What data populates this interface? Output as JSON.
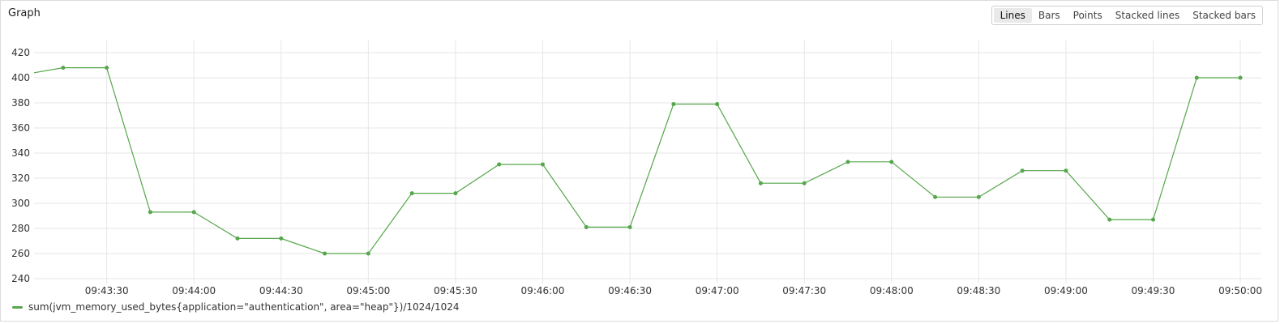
{
  "panel": {
    "title": "Graph"
  },
  "mode_toggle": {
    "options": [
      "Lines",
      "Bars",
      "Points",
      "Stacked lines",
      "Stacked bars"
    ],
    "selected": "Lines"
  },
  "colors": {
    "series": "#56a64b",
    "grid": "#e6e6e6",
    "axis_text": "#333333"
  },
  "chart_data": {
    "type": "line",
    "title": "",
    "xlabel": "",
    "ylabel": "",
    "ylim": [
      240,
      420
    ],
    "y_ticks": [
      240,
      260,
      280,
      300,
      320,
      340,
      360,
      380,
      400,
      420
    ],
    "xlim": [
      "09:43:05",
      "09:50:05"
    ],
    "x_ticks": [
      "09:43:30",
      "09:44:00",
      "09:44:30",
      "09:45:00",
      "09:45:30",
      "09:46:00",
      "09:46:30",
      "09:47:00",
      "09:47:30",
      "09:48:00",
      "09:48:30",
      "09:49:00",
      "09:49:30",
      "09:50:00"
    ],
    "grid": true,
    "legend_position": "bottom-left",
    "series": [
      {
        "name": "sum(jvm_memory_used_bytes{application=\"authentication\", area=\"heap\"})/1024/1024",
        "x": [
          "09:43:05",
          "09:43:15",
          "09:43:30",
          "09:43:45",
          "09:44:00",
          "09:44:15",
          "09:44:30",
          "09:44:45",
          "09:45:00",
          "09:45:15",
          "09:45:30",
          "09:45:45",
          "09:46:00",
          "09:46:15",
          "09:46:30",
          "09:46:45",
          "09:47:00",
          "09:47:15",
          "09:47:30",
          "09:47:45",
          "09:48:00",
          "09:48:15",
          "09:48:30",
          "09:48:45",
          "09:49:00",
          "09:49:15",
          "09:49:30",
          "09:49:45",
          "09:50:00"
        ],
        "values": [
          404,
          408,
          408,
          293,
          293,
          272,
          272,
          260,
          260,
          308,
          308,
          331,
          331,
          281,
          281,
          379,
          379,
          316,
          316,
          333,
          333,
          305,
          305,
          326,
          326,
          287,
          287,
          400,
          400
        ],
        "point_markers": [
          false,
          true,
          true,
          true,
          true,
          true,
          true,
          true,
          true,
          true,
          true,
          true,
          true,
          true,
          true,
          true,
          true,
          true,
          true,
          true,
          true,
          true,
          true,
          true,
          true,
          true,
          true,
          true,
          true
        ]
      }
    ]
  }
}
